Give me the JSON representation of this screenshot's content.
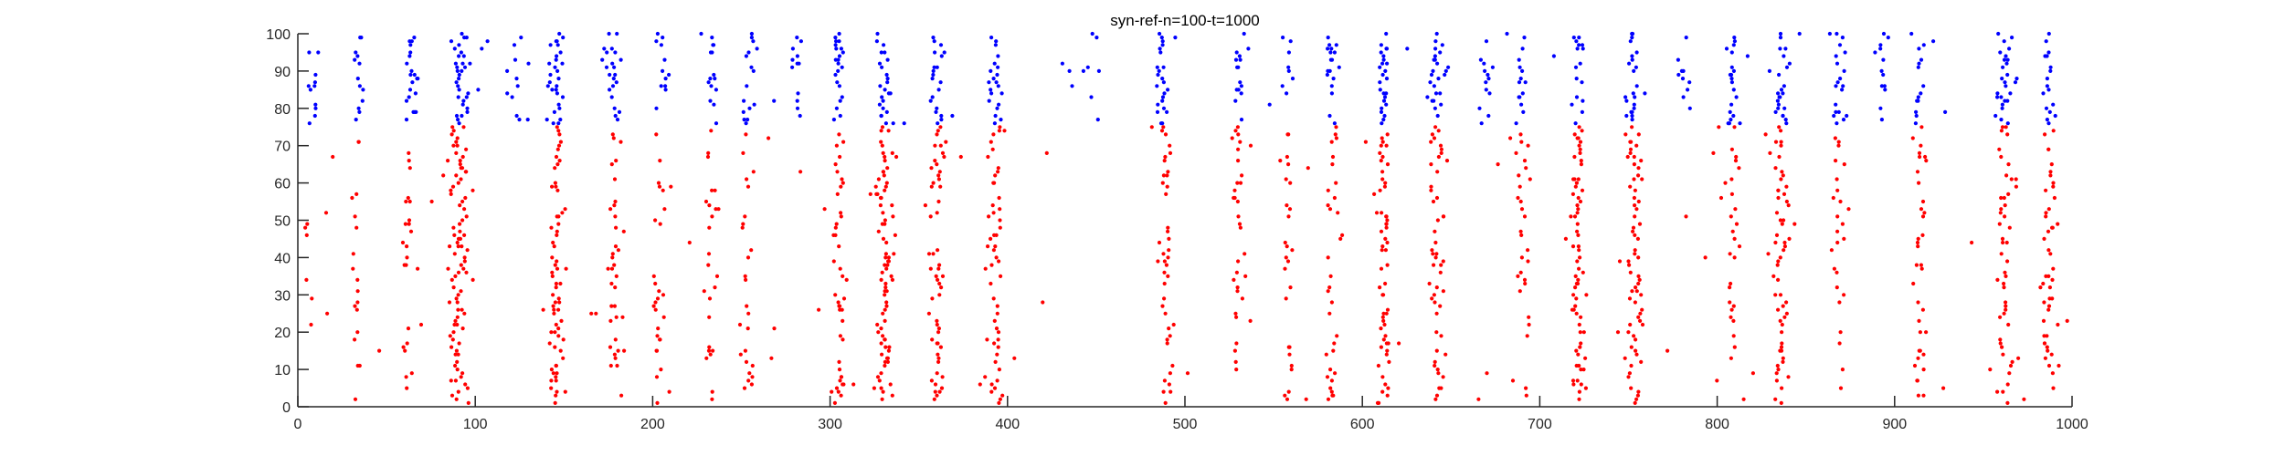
{
  "chart_data": {
    "type": "scatter",
    "title": "syn-ref-n=100-t=1000",
    "xlabel": "",
    "ylabel": "",
    "xlim": [
      0,
      1000
    ],
    "ylim": [
      0,
      100
    ],
    "xticks": [
      0,
      100,
      200,
      300,
      400,
      500,
      600,
      700,
      800,
      900,
      1000
    ],
    "yticks": [
      0,
      10,
      20,
      30,
      40,
      50,
      60,
      70,
      80,
      90,
      100
    ],
    "grid": false,
    "legend": "none",
    "series": [
      {
        "color": "#ff0000",
        "neuron_range": [
          1,
          75
        ],
        "burst_times": [
          6,
          33,
          62,
          91,
          146,
          178,
          203,
          233,
          254,
          305,
          331,
          360,
          393,
          490,
          530,
          558,
          583,
          612,
          642,
          690,
          722,
          753,
          808,
          836,
          869,
          914,
          962,
          987
        ],
        "burst_widths": [
          4,
          4,
          5,
          9,
          7,
          6,
          5,
          6,
          6,
          5,
          8,
          7,
          8,
          6,
          5,
          4,
          5,
          6,
          7,
          6,
          6,
          8,
          6,
          7,
          6,
          7,
          7,
          7
        ],
        "burst_density": [
          0.08,
          0.18,
          0.3,
          0.9,
          0.6,
          0.3,
          0.28,
          0.2,
          0.26,
          0.5,
          0.85,
          0.55,
          0.45,
          0.4,
          0.35,
          0.2,
          0.28,
          0.5,
          0.45,
          0.28,
          0.6,
          0.6,
          0.35,
          0.45,
          0.28,
          0.32,
          0.42,
          0.35
        ],
        "sparse_spikes": 90
      },
      {
        "color": "#0000ff",
        "neuron_range": [
          76,
          100
        ],
        "burst_times": [
          9,
          35,
          64,
          92,
          123,
          146,
          178,
          206,
          234,
          254,
          280,
          305,
          331,
          360,
          393,
          445,
          487,
          530,
          558,
          583,
          612,
          642,
          670,
          690,
          722,
          753,
          782,
          808,
          836,
          869,
          893,
          914,
          962,
          987
        ],
        "burst_widths": [
          5,
          5,
          6,
          9,
          8,
          7,
          7,
          5,
          5,
          6,
          7,
          5,
          7,
          7,
          8,
          18,
          6,
          5,
          5,
          6,
          5,
          7,
          6,
          6,
          6,
          7,
          7,
          6,
          7,
          6,
          6,
          6,
          8,
          7
        ],
        "burst_density": [
          0.3,
          0.45,
          0.55,
          0.95,
          0.35,
          0.75,
          0.55,
          0.5,
          0.35,
          0.55,
          0.3,
          0.65,
          0.85,
          0.65,
          0.6,
          0.25,
          0.55,
          0.45,
          0.35,
          0.5,
          0.6,
          0.6,
          0.35,
          0.5,
          0.6,
          0.75,
          0.3,
          0.5,
          0.6,
          0.5,
          0.3,
          0.45,
          0.65,
          0.5
        ],
        "sparse_spikes": 40
      }
    ]
  }
}
